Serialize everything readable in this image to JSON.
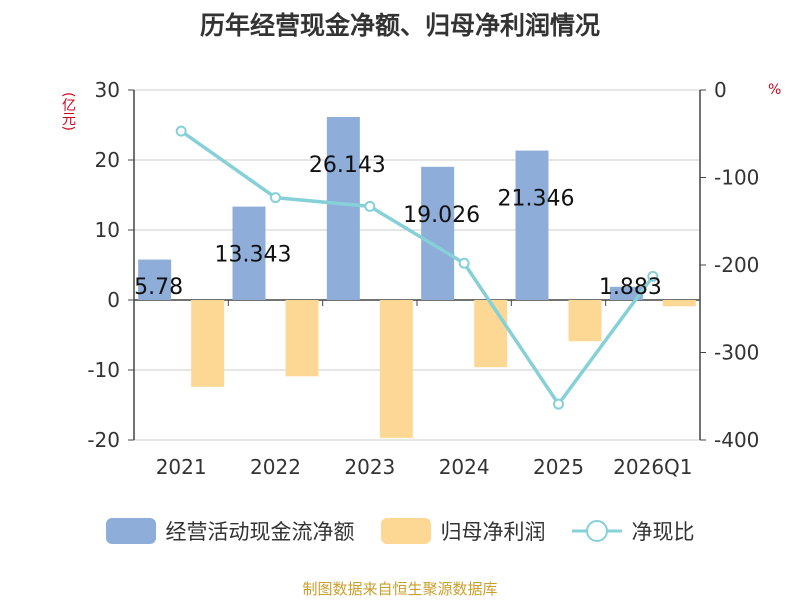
{
  "chart_data": {
    "type": "bar",
    "title": "历年经营现金净额、归母净利润情况",
    "categories": [
      "2021",
      "2022",
      "2023",
      "2024",
      "2025",
      "2026Q1"
    ],
    "left_axis": {
      "unit": "(亿元)",
      "range": [
        -20,
        30
      ],
      "ticks": [
        30,
        20,
        10,
        0,
        -10,
        -20
      ]
    },
    "right_axis": {
      "unit": "%",
      "range": [
        -400,
        0
      ],
      "ticks": [
        0,
        -100,
        -200,
        -300,
        -400
      ]
    },
    "series": [
      {
        "name": "经营活动现金流净额",
        "type": "bar",
        "axis": "left",
        "color": "#8eadd9",
        "values": [
          5.78,
          13.343,
          26.143,
          19.026,
          21.346,
          1.883
        ],
        "labels": [
          "5.78",
          "13.343",
          "26.143",
          "19.026",
          "21.346",
          "1.883"
        ]
      },
      {
        "name": "归母净利润",
        "type": "bar",
        "axis": "left",
        "color": "#fdd894",
        "values": [
          -12.4,
          -10.9,
          -19.7,
          -9.6,
          -5.9,
          -0.9
        ]
      },
      {
        "name": "净现比",
        "type": "line",
        "axis": "right",
        "color": "#86d0d8",
        "values": [
          -47,
          -123,
          -133,
          -198,
          -359,
          -213
        ]
      }
    ],
    "legend_position": "bottom",
    "grid": true
  },
  "footer": "制图数据来自恒生聚源数据库"
}
